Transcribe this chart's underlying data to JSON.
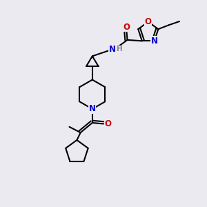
{
  "bg_color": "#eaeaf0",
  "atom_colors": {
    "N": "#0000cc",
    "O": "#cc0000",
    "H": "#888888"
  },
  "bond_color": "#000000",
  "bond_width": 1.5,
  "label_fontsize": 8.5
}
